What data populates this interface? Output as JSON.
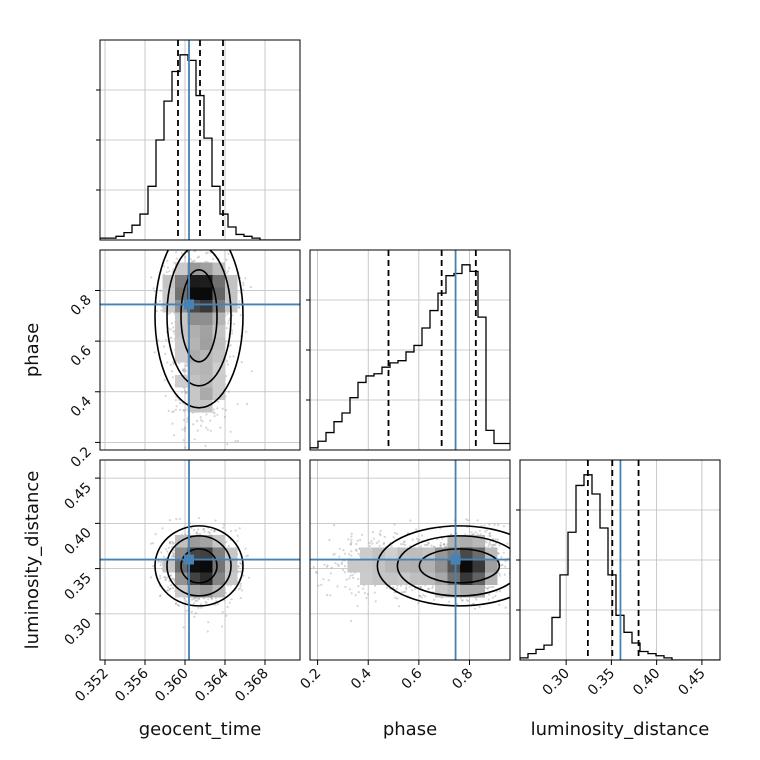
{
  "chart_data": {
    "type": "corner",
    "parameters": [
      "geocent_time",
      "phase",
      "luminosity_distance"
    ],
    "labels": {
      "geocent_time": "geocent_time",
      "phase": "phase",
      "luminosity_distance": "luminosity_distance"
    },
    "ranges": {
      "geocent_time": [
        0.3515,
        0.3715
      ],
      "phase": [
        0.17,
        0.96
      ],
      "luminosity_distance": [
        0.249,
        0.47
      ]
    },
    "ticks": {
      "geocent_time": [
        0.352,
        0.356,
        0.36,
        0.364,
        0.368
      ],
      "phase": [
        0.2,
        0.4,
        0.6,
        0.8
      ],
      "luminosity_distance": [
        0.3,
        0.35,
        0.4,
        0.45
      ]
    },
    "tick_labels": {
      "geocent_time": [
        "0.352",
        "0.356",
        "0.360",
        "0.364",
        "0.368"
      ],
      "phase": [
        "0.2",
        "0.4",
        "0.6",
        "0.8"
      ],
      "luminosity_distance": [
        "0.30",
        "0.35",
        "0.40",
        "0.45"
      ]
    },
    "truths": {
      "geocent_time": 0.3604,
      "phase": 0.745,
      "luminosity_distance": 0.36
    },
    "quantiles": {
      "geocent_time": [
        0.3593,
        0.3615,
        0.3638
      ],
      "phase": [
        0.48,
        0.69,
        0.825
      ],
      "luminosity_distance": [
        0.324,
        0.351,
        0.38
      ]
    },
    "histograms": {
      "geocent_time": {
        "bin_width": 0.0008,
        "edges_start": 0.3515,
        "counts": [
          1,
          1,
          2,
          4,
          8,
          14,
          29,
          54,
          75,
          91,
          100,
          97,
          78,
          55,
          29,
          14,
          7,
          3,
          2,
          1,
          0,
          0,
          0,
          0,
          0
        ]
      },
      "phase": {
        "bin_width": 0.0316,
        "edges_start": 0.17,
        "counts": [
          1,
          4,
          8,
          13,
          17,
          24,
          31,
          34,
          35,
          38,
          40,
          41,
          45,
          48,
          56,
          64,
          72,
          80,
          81,
          85,
          82,
          61,
          9,
          3,
          3
        ]
      },
      "luminosity_distance": {
        "bin_width": 0.00884,
        "edges_start": 0.249,
        "counts": [
          1,
          3,
          5,
          7,
          20,
          40,
          60,
          82,
          87,
          78,
          62,
          40,
          21,
          13,
          8,
          4,
          3,
          2,
          1,
          0,
          0,
          0,
          0,
          0,
          0
        ]
      }
    },
    "grid": true,
    "colors": {
      "truth": "#4682b4",
      "hist": "#000000",
      "contour": "#000000",
      "grid": "#bbbbbb"
    }
  }
}
